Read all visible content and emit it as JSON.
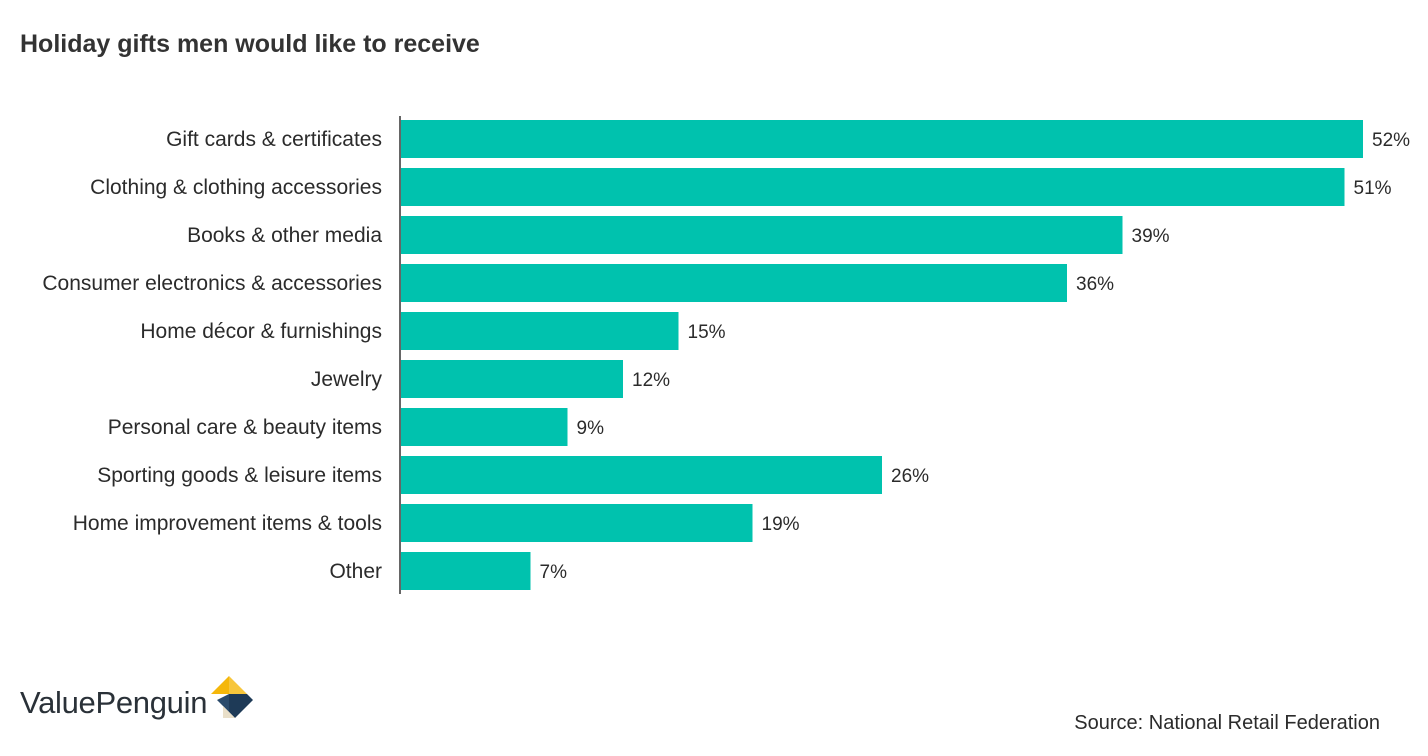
{
  "title": "Holiday gifts men would like to receive",
  "source": "Source: National Retail Federation",
  "brand": {
    "name": "ValuePenguin",
    "logo_icon": "valuepenguin-logo-icon"
  },
  "colors": {
    "bar": "#00c2ae",
    "axis": "#333333",
    "text": "#2b2b2b",
    "logo_gold": "#f5b70a",
    "logo_navy": "#1e3a57",
    "logo_beige": "#e9dfc9"
  },
  "chart_data": {
    "type": "bar",
    "orientation": "horizontal",
    "categories": [
      "Gift cards & certificates",
      "Clothing & clothing accessories",
      "Books & other media",
      "Consumer electronics & accessories",
      "Home décor & furnishings",
      "Jewelry",
      "Personal care & beauty items",
      "Sporting goods & leisure items",
      "Home improvement items & tools",
      "Other"
    ],
    "values": [
      52,
      51,
      39,
      36,
      15,
      12,
      9,
      26,
      19,
      7
    ],
    "value_labels": [
      "52%",
      "51%",
      "39%",
      "36%",
      "15%",
      "12%",
      "9%",
      "26%",
      "19%",
      "7%"
    ],
    "unit": "%",
    "xlim": [
      0,
      52
    ],
    "grid": false,
    "legend": "none"
  }
}
